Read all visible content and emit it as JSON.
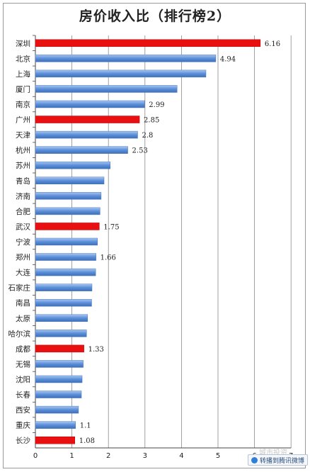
{
  "chart_data": {
    "type": "bar",
    "orientation": "horizontal",
    "title": "房价收入比（排行榜2）",
    "categories": [
      "深圳",
      "北京",
      "上海",
      "厦门",
      "南京",
      "广州",
      "天津",
      "杭州",
      "苏州",
      "青岛",
      "济南",
      "合肥",
      "武汉",
      "宁波",
      "郑州",
      "大连",
      "石家庄",
      "南昌",
      "太原",
      "哈尔滨",
      "成都",
      "无锡",
      "沈阳",
      "长春",
      "西安",
      "重庆",
      "长沙"
    ],
    "values": [
      6.16,
      4.94,
      4.67,
      3.88,
      2.99,
      2.85,
      2.8,
      2.53,
      2.05,
      1.88,
      1.8,
      1.77,
      1.75,
      1.7,
      1.66,
      1.65,
      1.55,
      1.54,
      1.43,
      1.4,
      1.33,
      1.31,
      1.28,
      1.26,
      1.18,
      1.1,
      1.08
    ],
    "data_labels": {
      "深圳": "6.16",
      "北京": "4.94",
      "南京": "2.99",
      "广州": "2.85",
      "天津": "2.8",
      "杭州": "2.53",
      "武汉": "1.75",
      "郑州": "1.66",
      "成都": "1.33",
      "重庆": "1.1",
      "长沙": "1.08"
    },
    "highlighted": [
      "深圳",
      "广州",
      "武汉",
      "成都",
      "长沙"
    ],
    "colors": {
      "highlight": "#e81010",
      "normal": "#5b8fd9",
      "normal_light": "#a9c6f0",
      "grid": "#8a8a8a"
    },
    "xlim": [
      0,
      7
    ],
    "xticks": [
      "0",
      "1",
      "2",
      "3",
      "4",
      "5",
      "6",
      "7"
    ],
    "grid": true,
    "xlabel": "",
    "ylabel": ""
  },
  "watermark": "城市投资",
  "source_badge": "转播到腾讯微博"
}
